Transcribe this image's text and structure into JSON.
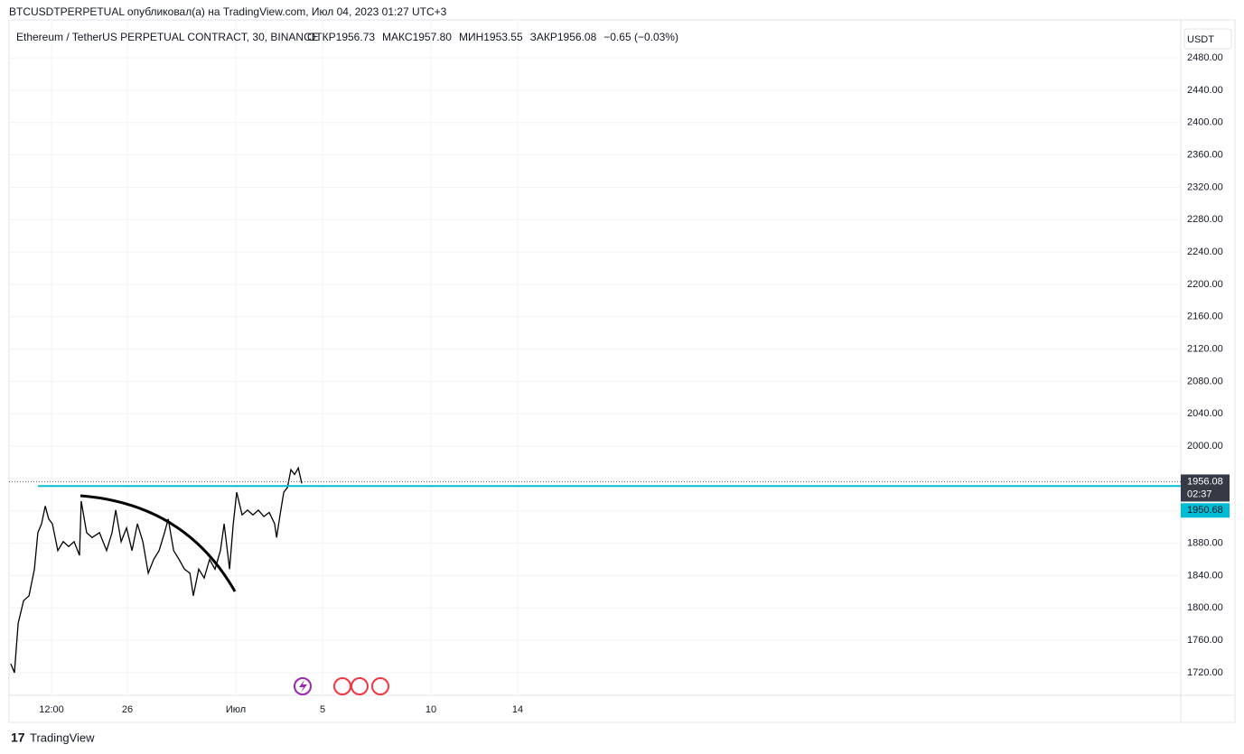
{
  "header": "BTCUSDTPERPETUAL опубликовал(а) на TradingView.com, Июл 04, 2023 01:27 UTC+3",
  "footer": "TradingView",
  "chart_data": {
    "type": "line",
    "title": "Ethereum / TetherUS PERPETUAL CONTRACT, 30, BINANCE",
    "ohlc": [
      "ОТКР1956.73",
      "МАКС1957.80",
      "МИН1953.55",
      "ЗАКР1956.08",
      "−0.65 (−0.03%)"
    ],
    "currency": "USDT",
    "grid": true,
    "xlim": [
      -5.46,
      48.58
    ],
    "ylim": [
      1692,
      2527
    ],
    "xticks": [
      {
        "value": -3.5,
        "label": "12:00"
      },
      {
        "value": 0,
        "label": "26"
      },
      {
        "value": 5,
        "label": "Июл"
      },
      {
        "value": 9,
        "label": "5"
      },
      {
        "value": 14,
        "label": "10"
      },
      {
        "value": 18,
        "label": "14"
      }
    ],
    "yticks": [
      {
        "value": 1720,
        "label": "1720.00"
      },
      {
        "value": 1760,
        "label": "1760.00"
      },
      {
        "value": 1800,
        "label": "1800.00"
      },
      {
        "value": 1840,
        "label": "1840.00"
      },
      {
        "value": 1880,
        "label": "1880.00"
      },
      {
        "value": 1920,
        "label": "1920.00"
      },
      {
        "value": 1960,
        "label": "1960.00"
      },
      {
        "value": 2000,
        "label": "2000.00"
      },
      {
        "value": 2040,
        "label": "2040.00"
      },
      {
        "value": 2080,
        "label": "2080.00"
      },
      {
        "value": 2120,
        "label": "2120.00"
      },
      {
        "value": 2160,
        "label": "2160.00"
      },
      {
        "value": 2200,
        "label": "2200.00"
      },
      {
        "value": 2240,
        "label": "2240.00"
      },
      {
        "value": 2280,
        "label": "2280.00"
      },
      {
        "value": 2320,
        "label": "2320.00"
      },
      {
        "value": 2360,
        "label": "2360.00"
      },
      {
        "value": 2400,
        "label": "2400.00"
      },
      {
        "value": 2440,
        "label": "2440.00"
      },
      {
        "value": 2480,
        "label": "2480.00"
      }
    ],
    "x": [
      -5.38,
      -5.21,
      -5.04,
      -4.79,
      -4.54,
      -4.29,
      -4.13,
      -3.96,
      -3.79,
      -3.63,
      -3.46,
      -3.21,
      -2.96,
      -2.71,
      -2.46,
      -2.21,
      -2.13,
      -1.88,
      -1.63,
      -1.29,
      -0.96,
      -0.71,
      -0.54,
      -0.29,
      -0.04,
      0.21,
      0.46,
      0.71,
      0.96,
      1.21,
      1.46,
      1.71,
      1.88,
      2.13,
      2.38,
      2.63,
      2.88,
      3.04,
      3.29,
      3.54,
      3.79,
      4.04,
      4.29,
      4.46,
      4.71,
      4.88,
      5.04,
      5.29,
      5.54,
      5.79,
      6.04,
      6.29,
      6.54,
      6.79,
      6.88,
      7.04,
      7.21,
      7.38,
      7.54,
      7.71,
      7.88,
      8.04
    ],
    "series": [
      {
        "color": "#000000",
        "values": [
          1731,
          1720,
          1781,
          1809,
          1815,
          1848,
          1893,
          1904,
          1926,
          1910,
          1904,
          1871,
          1882,
          1876,
          1882,
          1865,
          1932,
          1893,
          1887,
          1893,
          1871,
          1893,
          1921,
          1882,
          1899,
          1871,
          1904,
          1882,
          1843,
          1860,
          1871,
          1893,
          1910,
          1871,
          1860,
          1848,
          1843,
          1815,
          1848,
          1837,
          1860,
          1848,
          1871,
          1904,
          1848,
          1904,
          1943,
          1915,
          1921,
          1915,
          1921,
          1913,
          1918,
          1904,
          1887,
          1915,
          1943,
          1949,
          1971,
          1965,
          1973,
          1954
        ]
      }
    ],
    "last_price": {
      "value": 1956.08,
      "label": "1956.08",
      "countdown": "02:37"
    },
    "hline": {
      "value": 1950.68,
      "label": "1950.68",
      "color": "#00bcd4"
    }
  }
}
